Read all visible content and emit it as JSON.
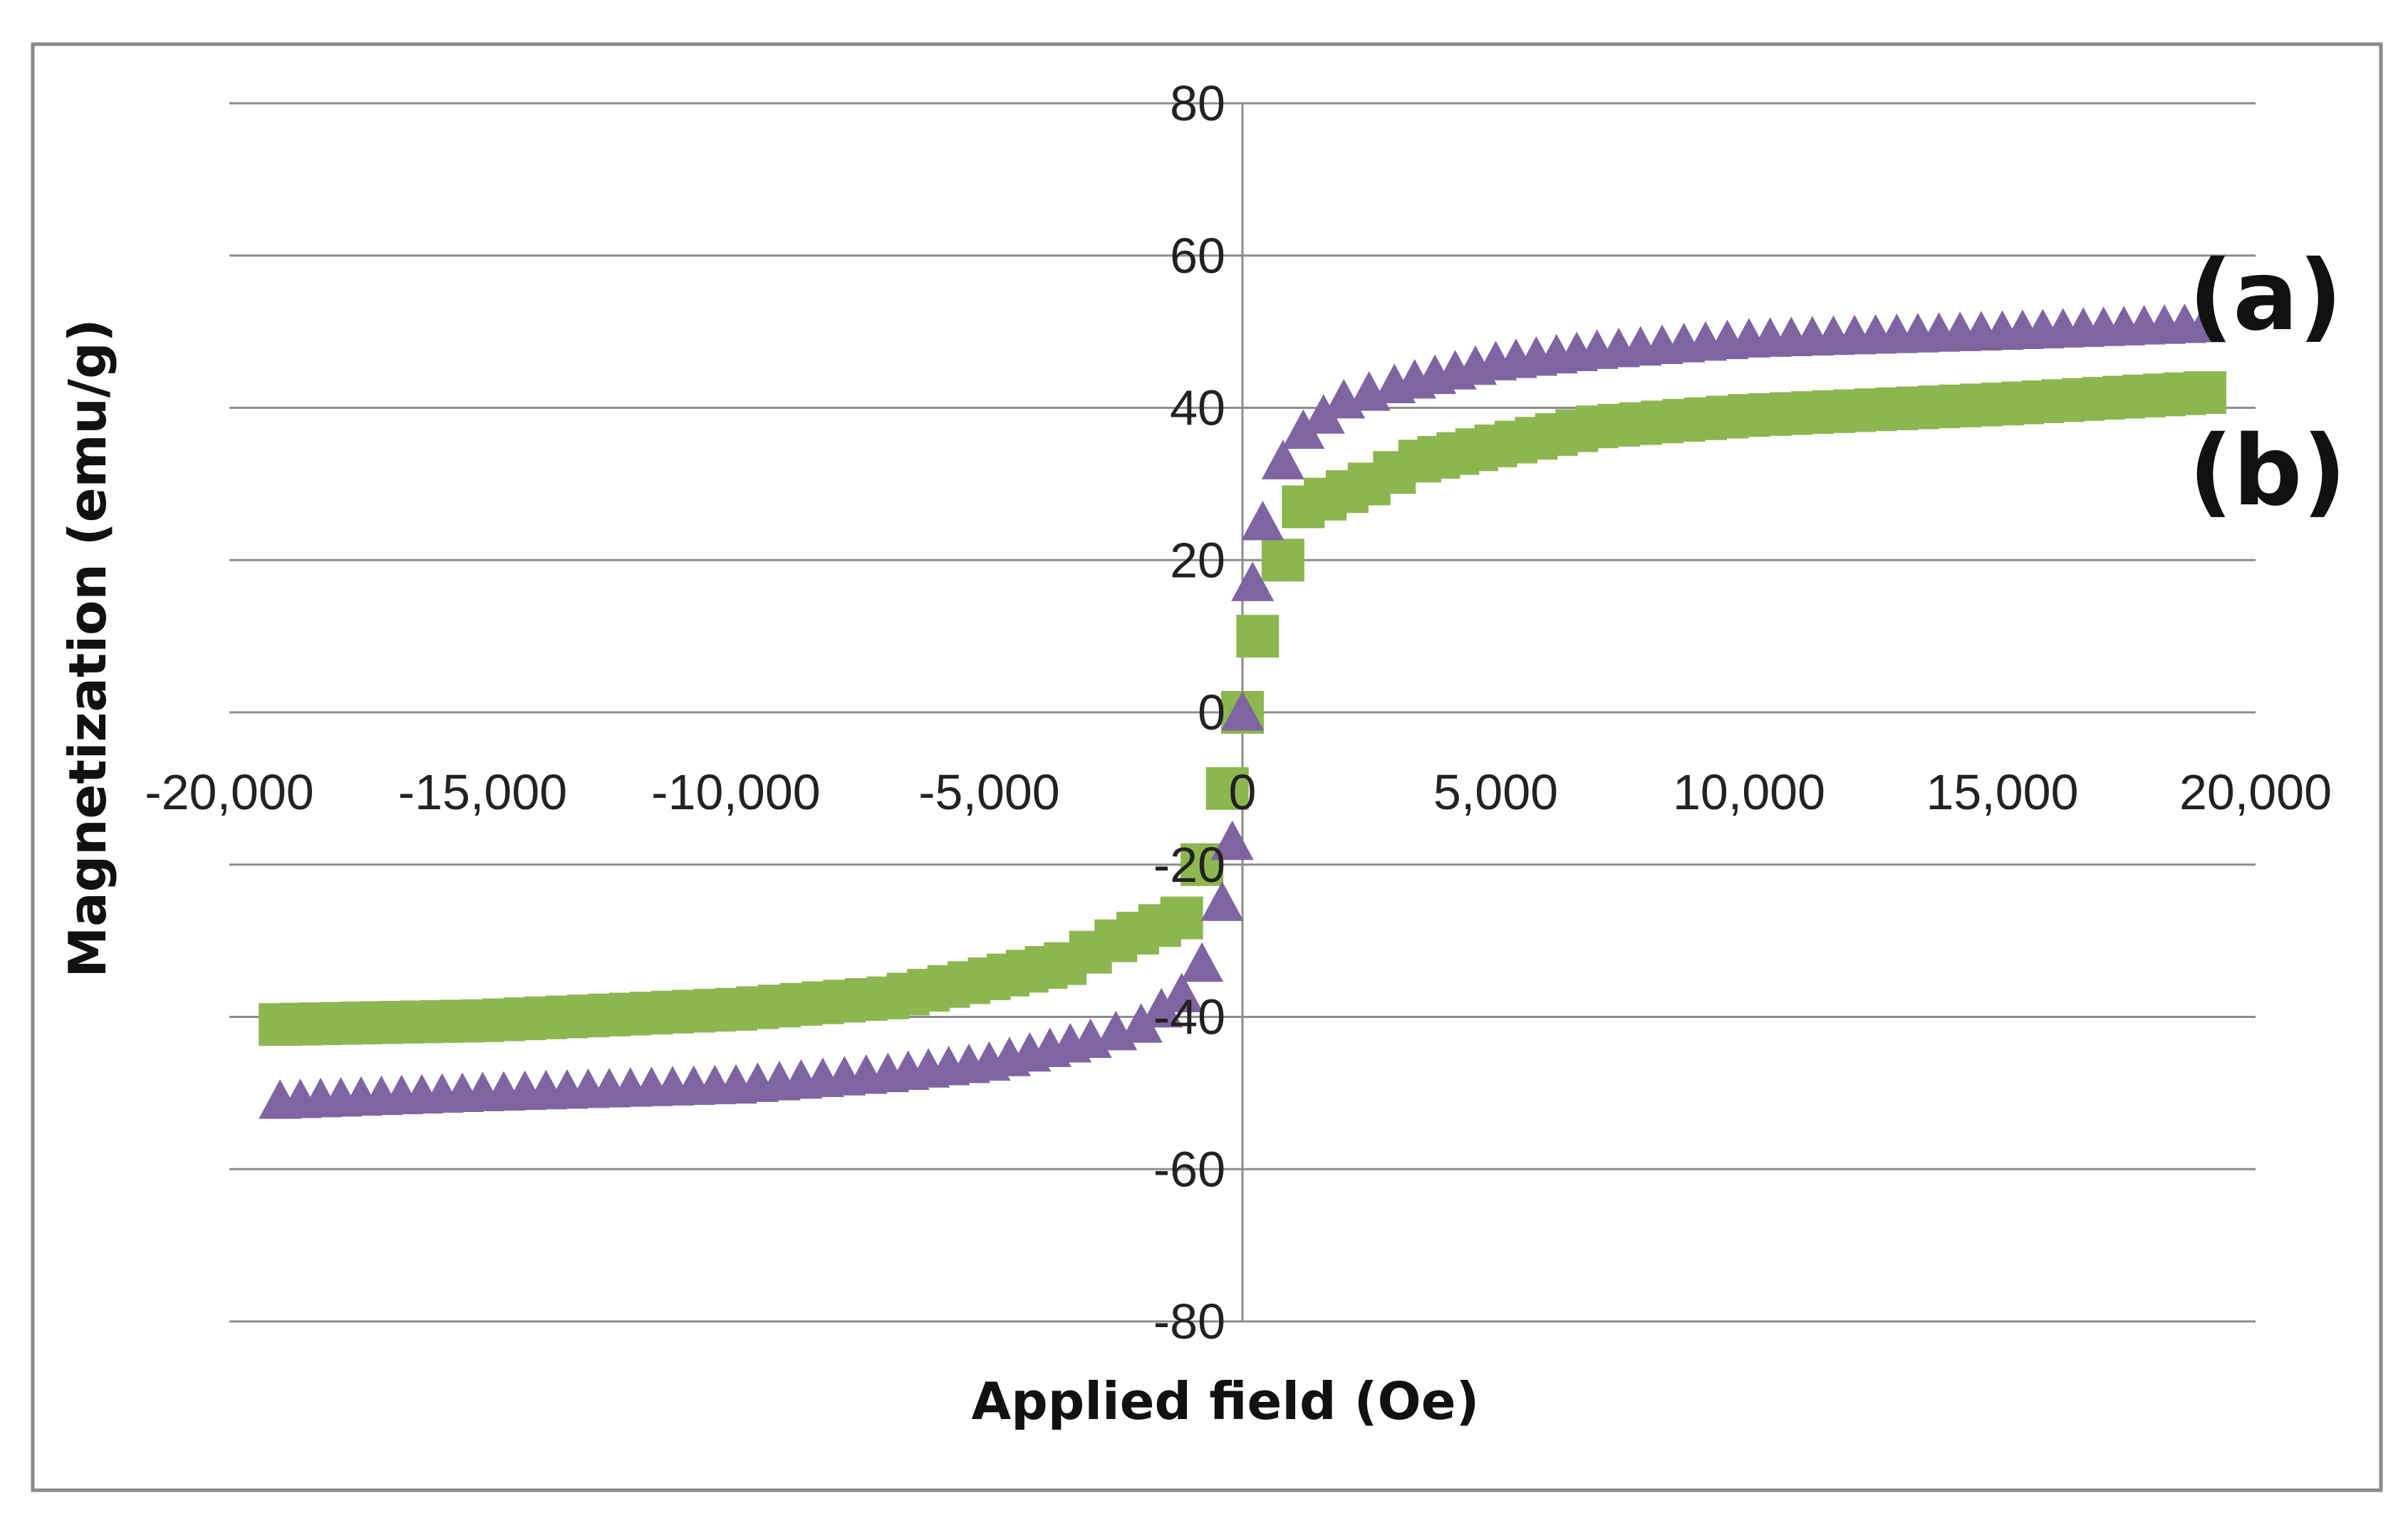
{
  "chart_data": {
    "type": "scatter",
    "title": "",
    "xlabel": "Applied field (Oe)",
    "ylabel": "Magnetization (emu/g)",
    "xlim": [
      -20000,
      20000
    ],
    "ylim": [
      -80,
      80
    ],
    "grid": true,
    "x_ticks": [
      "-20,000",
      "-15,000",
      "-10,000",
      "-5,000",
      "0",
      "5,000",
      "10,000",
      "15,000",
      "20,000"
    ],
    "y_ticks": [
      "80",
      "60",
      "40",
      "20",
      "0",
      "-20",
      "-40",
      "-60",
      "-80"
    ],
    "series": [
      {
        "name": "(a)",
        "marker": "triangle",
        "color": "#8064A2",
        "points": [
          [
            -19000,
            -51
          ],
          [
            -15000,
            -50
          ],
          [
            -10000,
            -49
          ],
          [
            -7000,
            -47.5
          ],
          [
            -5000,
            -46
          ],
          [
            -3000,
            -43
          ],
          [
            -2000,
            -41
          ],
          [
            -1200,
            -37
          ],
          [
            -800,
            -33
          ],
          [
            -400,
            -25
          ],
          [
            -200,
            -17
          ],
          [
            0,
            0
          ],
          [
            200,
            17
          ],
          [
            400,
            25
          ],
          [
            800,
            33
          ],
          [
            1200,
            37
          ],
          [
            2000,
            41
          ],
          [
            3000,
            43
          ],
          [
            5000,
            46
          ],
          [
            7000,
            47.5
          ],
          [
            10000,
            49
          ],
          [
            15000,
            50
          ],
          [
            19000,
            51
          ]
        ]
      },
      {
        "name": "(b)",
        "marker": "square",
        "color": "#8DB651",
        "points": [
          [
            -19000,
            -41
          ],
          [
            -15000,
            -40.5
          ],
          [
            -10000,
            -39
          ],
          [
            -7000,
            -37.5
          ],
          [
            -5000,
            -35
          ],
          [
            -3500,
            -33
          ],
          [
            -2500,
            -30
          ],
          [
            -1200,
            -27
          ],
          [
            -800,
            -20
          ],
          [
            -300,
            -10
          ],
          [
            0,
            0
          ],
          [
            300,
            10
          ],
          [
            800,
            20
          ],
          [
            1200,
            27
          ],
          [
            2500,
            30
          ],
          [
            3500,
            33
          ],
          [
            5000,
            35
          ],
          [
            7000,
            37.5
          ],
          [
            10000,
            39
          ],
          [
            15000,
            40.5
          ],
          [
            19000,
            42
          ]
        ]
      }
    ],
    "series_labels": [
      "(a)",
      "(b)"
    ]
  }
}
